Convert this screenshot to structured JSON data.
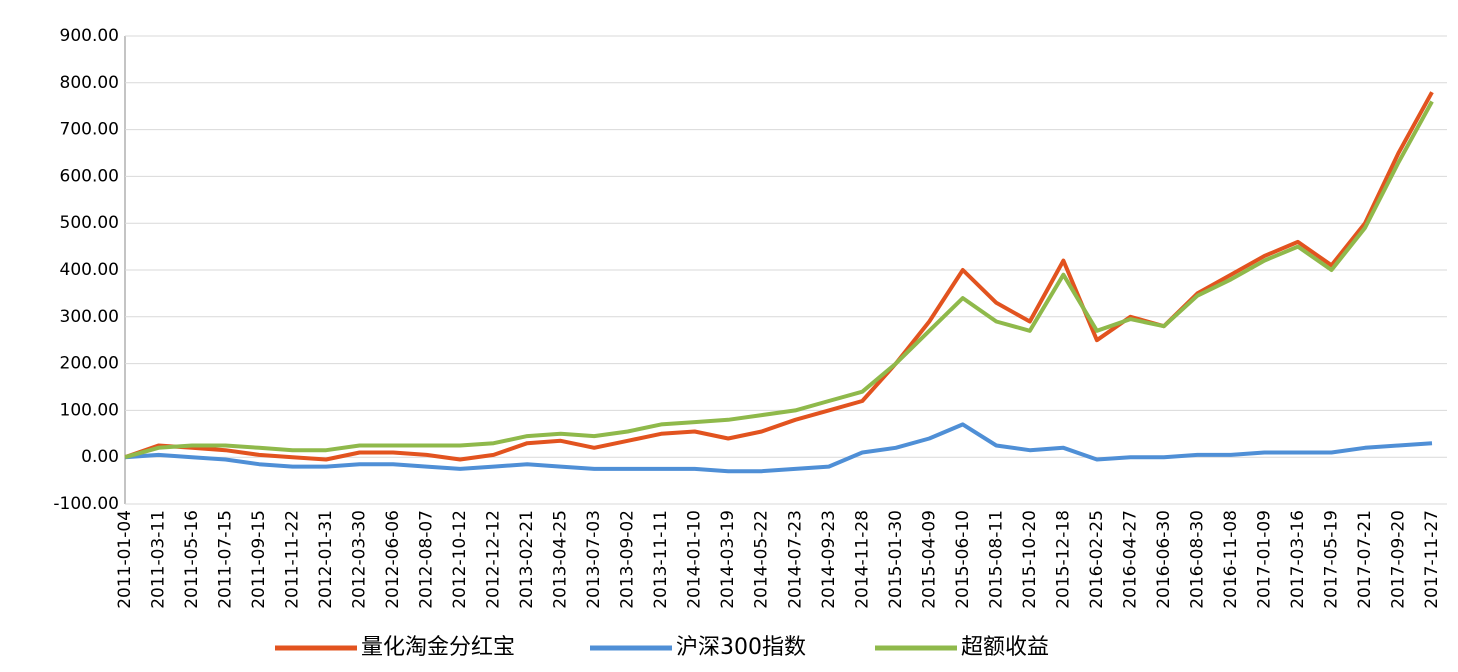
{
  "chart_data": {
    "type": "line",
    "categories": [
      "2011-01-04",
      "2011-03-11",
      "2011-05-16",
      "2011-07-15",
      "2011-09-15",
      "2011-11-22",
      "2012-01-31",
      "2012-03-30",
      "2012-06-06",
      "2012-08-07",
      "2012-10-12",
      "2012-12-12",
      "2013-02-21",
      "2013-04-25",
      "2013-07-03",
      "2013-09-02",
      "2013-11-11",
      "2014-01-10",
      "2014-03-19",
      "2014-05-22",
      "2014-07-23",
      "2014-09-23",
      "2014-11-28",
      "2015-01-30",
      "2015-04-09",
      "2015-06-10",
      "2015-08-11",
      "2015-10-20",
      "2015-12-18",
      "2016-02-25",
      "2016-04-27",
      "2016-06-30",
      "2016-08-30",
      "2016-11-08",
      "2017-01-09",
      "2017-03-16",
      "2017-05-19",
      "2017-07-21",
      "2017-09-20",
      "2017-11-27"
    ],
    "series": [
      {
        "name": "量化淘金分红宝",
        "color": "#e2531f",
        "values": [
          0,
          25,
          20,
          15,
          5,
          0,
          -5,
          10,
          10,
          5,
          -5,
          5,
          30,
          35,
          20,
          35,
          50,
          55,
          40,
          55,
          80,
          100,
          120,
          200,
          290,
          400,
          330,
          290,
          420,
          250,
          300,
          280,
          350,
          390,
          430,
          460,
          410,
          500,
          650,
          780
        ]
      },
      {
        "name": "沪深300指数",
        "color": "#4f8fd6",
        "values": [
          0,
          5,
          0,
          -5,
          -15,
          -20,
          -20,
          -15,
          -15,
          -20,
          -25,
          -20,
          -15,
          -20,
          -25,
          -25,
          -25,
          -25,
          -30,
          -30,
          -25,
          -20,
          10,
          20,
          40,
          70,
          25,
          15,
          20,
          -5,
          0,
          0,
          5,
          5,
          10,
          10,
          10,
          20,
          25,
          30
        ]
      },
      {
        "name": "超额收益",
        "color": "#8fb94b",
        "values": [
          0,
          20,
          25,
          25,
          20,
          15,
          15,
          25,
          25,
          25,
          25,
          30,
          45,
          50,
          45,
          55,
          70,
          75,
          80,
          90,
          100,
          120,
          140,
          200,
          270,
          340,
          290,
          270,
          390,
          270,
          295,
          280,
          345,
          380,
          420,
          450,
          400,
          490,
          630,
          760
        ]
      }
    ],
    "ylim": [
      -100,
      900
    ],
    "yticks": [
      {
        "value": -100,
        "label": "-100.00"
      },
      {
        "value": 0,
        "label": "0.00"
      },
      {
        "value": 100,
        "label": "100.00"
      },
      {
        "value": 200,
        "label": "200.00"
      },
      {
        "value": 300,
        "label": "300.00"
      },
      {
        "value": 400,
        "label": "400.00"
      },
      {
        "value": 500,
        "label": "500.00"
      },
      {
        "value": 600,
        "label": "600.00"
      },
      {
        "value": 700,
        "label": "700.00"
      },
      {
        "value": 800,
        "label": "800.00"
      },
      {
        "value": 900,
        "label": "900.00"
      }
    ],
    "grid": true,
    "legend": "bottom"
  }
}
